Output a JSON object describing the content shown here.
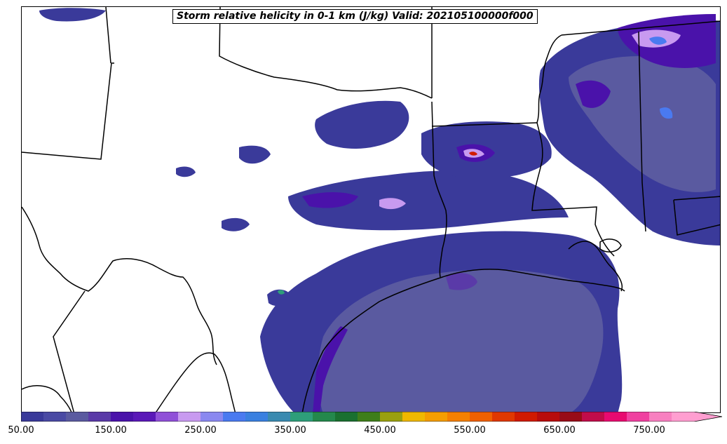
{
  "title": "Storm relative helicity in 0-1 km (J/kg) Valid: 202105100000f000",
  "colorbar": {
    "min": 50,
    "max": 800,
    "step": 25,
    "extend": "max",
    "tick_labels": [
      "50.00",
      "150.00",
      "250.00",
      "350.00",
      "450.00",
      "550.00",
      "650.00",
      "750.00"
    ],
    "colors": [
      "#3a3a9a",
      "#4a4aa4",
      "#5a5aa0",
      "#5a3aa8",
      "#4a12aa",
      "#5a18b8",
      "#9050d8",
      "#c89af0",
      "#8a88f0",
      "#4a7af0",
      "#3a80e0",
      "#3a8ab0",
      "#2e9e7a",
      "#24884c",
      "#1a7030",
      "#3e7e1a",
      "#9aa010",
      "#f0b800",
      "#f59e00",
      "#f58000",
      "#f06000",
      "#e03800",
      "#d01a00",
      "#b80c0c",
      "#980c18",
      "#c00c4a",
      "#e80a70",
      "#f040a0",
      "#f880c0",
      "#ff9ed0"
    ]
  },
  "map_legend": {
    "fill_low": "#3a3a9a",
    "fill_mid": "#5a5aa0",
    "fill_high": "#4a12aa",
    "fill_light": "#c89af0",
    "boundary_color": "#000000"
  }
}
